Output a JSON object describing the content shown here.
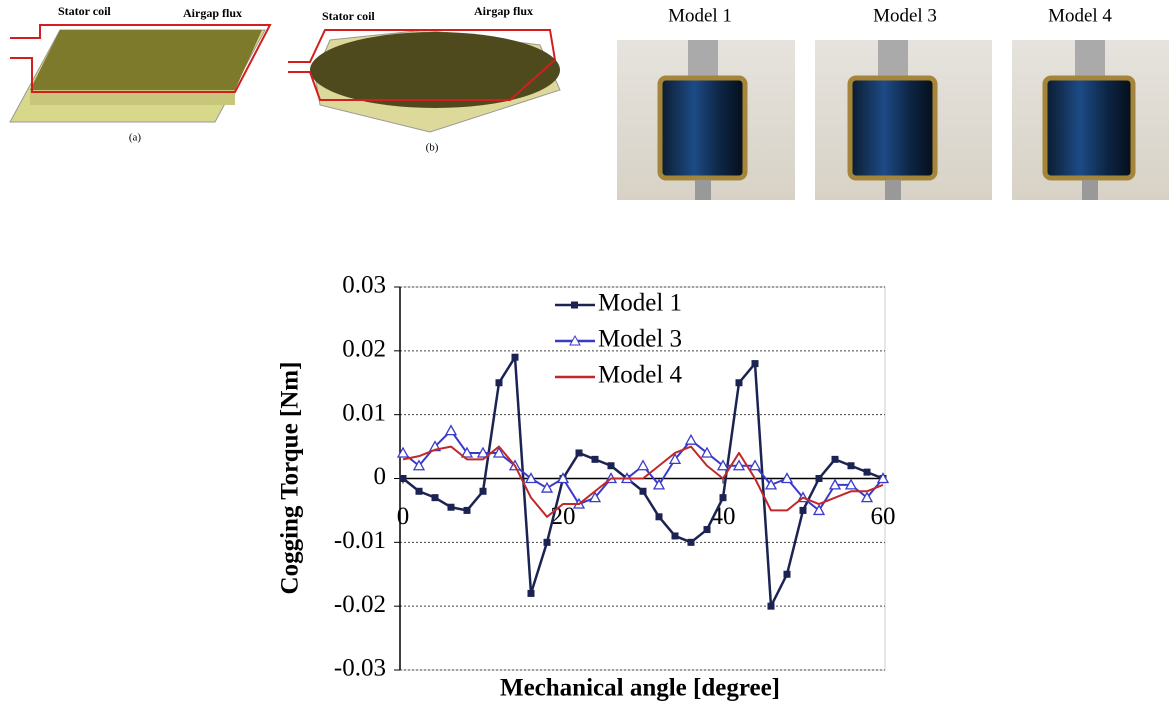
{
  "figures": {
    "a": {
      "coil": "Stator coil",
      "flux": "Airgap flux",
      "caption": "(a)"
    },
    "b": {
      "coil": "Stator coil",
      "flux": "Airgap flux",
      "caption": "(b)"
    },
    "photos": [
      "Model 1",
      "Model 3",
      "Model 4"
    ]
  },
  "chart_data": {
    "type": "line",
    "x_label": "Mechanical angle [degree]",
    "y_label": "Cogging Torque [Nm]",
    "x": [
      0,
      2,
      4,
      6,
      8,
      10,
      12,
      14,
      16,
      18,
      20,
      22,
      24,
      26,
      28,
      30,
      32,
      34,
      36,
      38,
      40,
      42,
      44,
      46,
      48,
      50,
      52,
      54,
      56,
      58,
      60
    ],
    "series": [
      {
        "name": "Model 1",
        "color": "#1a2352",
        "marker": "square",
        "values": [
          0,
          -0.002,
          -0.003,
          -0.0045,
          -0.005,
          -0.002,
          0.015,
          0.019,
          -0.018,
          -0.01,
          0,
          0.004,
          0.003,
          0.002,
          0,
          -0.002,
          -0.006,
          -0.009,
          -0.01,
          -0.008,
          -0.003,
          0.015,
          0.018,
          -0.02,
          -0.015,
          -0.005,
          0,
          0.003,
          0.002,
          0.001,
          0
        ]
      },
      {
        "name": "Model 3",
        "color": "#3a3ac8",
        "marker": "triangle",
        "values": [
          0.004,
          0.002,
          0.005,
          0.0075,
          0.004,
          0.004,
          0.004,
          0.002,
          0,
          -0.0015,
          0,
          -0.004,
          -0.003,
          0,
          0,
          0.002,
          -0.001,
          0.003,
          0.006,
          0.004,
          0.002,
          0.002,
          0.002,
          -0.001,
          0,
          -0.003,
          -0.005,
          -0.001,
          -0.001,
          -0.003,
          0
        ]
      },
      {
        "name": "Model 4",
        "color": "#c0282a",
        "marker": "none",
        "values": [
          0.003,
          0.0035,
          0.0045,
          0.005,
          0.003,
          0.003,
          0.005,
          0.002,
          -0.003,
          -0.006,
          -0.004,
          -0.004,
          -0.002,
          0,
          0,
          0,
          0.002,
          0.004,
          0.005,
          0.002,
          0,
          0.004,
          0,
          -0.005,
          -0.005,
          -0.003,
          -0.004,
          -0.003,
          -0.002,
          -0.002,
          -0.001
        ]
      }
    ],
    "xlim": [
      0,
      60
    ],
    "xticks": [
      0,
      20,
      40,
      60
    ],
    "ylim": [
      -0.03,
      0.03
    ],
    "yticks": [
      -0.03,
      -0.02,
      -0.01,
      0,
      0.01,
      0.02,
      0.03
    ],
    "grid": true,
    "legend": "top"
  }
}
